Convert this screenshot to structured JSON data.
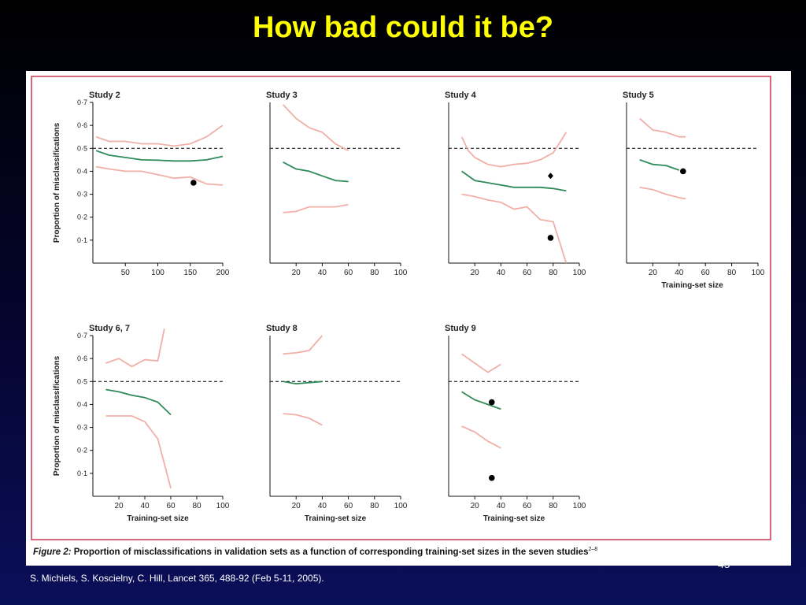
{
  "slide": {
    "title": "How bad could it be?",
    "slide_number": "45",
    "citation": "S. Michiels, S. Koscielny, C. Hill, Lancet 365, 488-92 (Feb 5-11, 2005)."
  },
  "figure": {
    "caption": "Figure 2: Proportion of misclassifications in validation sets as a function of corresponding training-set sizes in the seven studies",
    "caption_prefix": "Figure 2:",
    "caption_body": " Proportion of misclassifications in validation sets as a function of corresponding training-set sizes in the seven studies",
    "caption_superscript": "2–8",
    "border_color": "#cc3355",
    "colors": {
      "median": "#2e8b57",
      "bounds": "#f0b0a8",
      "reference": "#000000",
      "points": "#000000"
    }
  },
  "chart_data": [
    {
      "type": "line",
      "title": "Study 2",
      "xlabel": "",
      "ylabel": "Proportion of misclassifications",
      "xlim": [
        0,
        200
      ],
      "ylim": [
        0,
        0.7
      ],
      "xticks": [
        50,
        100,
        150,
        200
      ],
      "yticks": [
        0.1,
        0.2,
        0.3,
        0.4,
        0.5,
        0.6,
        0.7
      ],
      "xtick_labels": [
        "50",
        "100",
        "150",
        "200"
      ],
      "ytick_labels": [
        "0·1",
        "0·2",
        "0·3",
        "0·4",
        "0·5",
        "0·6",
        "0·7"
      ],
      "reference_line": 0.5,
      "series": [
        {
          "role": "median",
          "x": [
            5,
            25,
            50,
            75,
            100,
            125,
            150,
            175,
            200
          ],
          "y": [
            0.49,
            0.47,
            0.46,
            0.45,
            0.448,
            0.445,
            0.445,
            0.45,
            0.465
          ]
        },
        {
          "role": "upper",
          "x": [
            5,
            25,
            50,
            75,
            100,
            125,
            150,
            175,
            200
          ],
          "y": [
            0.55,
            0.53,
            0.53,
            0.52,
            0.52,
            0.51,
            0.52,
            0.55,
            0.6
          ]
        },
        {
          "role": "lower",
          "x": [
            5,
            25,
            50,
            75,
            100,
            125,
            150,
            175,
            200
          ],
          "y": [
            0.42,
            0.41,
            0.4,
            0.4,
            0.385,
            0.37,
            0.375,
            0.345,
            0.34
          ]
        }
      ],
      "points": [
        {
          "x": 155,
          "y": 0.35
        }
      ],
      "diamonds": []
    },
    {
      "type": "line",
      "title": "Study 3",
      "xlabel": "",
      "ylabel": "",
      "xlim": [
        0,
        100
      ],
      "ylim": [
        0,
        0.7
      ],
      "xticks": [
        20,
        40,
        60,
        80,
        100
      ],
      "yticks": [],
      "xtick_labels": [
        "20",
        "40",
        "60",
        "80",
        "100"
      ],
      "ytick_labels": [],
      "reference_line": 0.5,
      "series": [
        {
          "role": "median",
          "x": [
            10,
            20,
            30,
            40,
            50,
            60
          ],
          "y": [
            0.44,
            0.41,
            0.4,
            0.38,
            0.36,
            0.355
          ]
        },
        {
          "role": "upper",
          "x": [
            10,
            20,
            30,
            40,
            50,
            60
          ],
          "y": [
            0.69,
            0.63,
            0.59,
            0.57,
            0.52,
            0.49
          ]
        },
        {
          "role": "lower",
          "x": [
            10,
            20,
            30,
            40,
            50,
            60
          ],
          "y": [
            0.22,
            0.225,
            0.245,
            0.245,
            0.245,
            0.255
          ]
        }
      ],
      "points": [],
      "diamonds": []
    },
    {
      "type": "line",
      "title": "Study 4",
      "xlabel": "",
      "ylabel": "",
      "xlim": [
        0,
        100
      ],
      "ylim": [
        0,
        0.7
      ],
      "xticks": [
        20,
        40,
        60,
        80,
        100
      ],
      "yticks": [],
      "xtick_labels": [
        "20",
        "40",
        "60",
        "80",
        "100"
      ],
      "ytick_labels": [],
      "reference_line": 0.5,
      "series": [
        {
          "role": "median",
          "x": [
            10,
            20,
            30,
            40,
            50,
            60,
            70,
            80,
            90
          ],
          "y": [
            0.4,
            0.36,
            0.35,
            0.34,
            0.33,
            0.33,
            0.33,
            0.325,
            0.315
          ]
        },
        {
          "role": "upper",
          "x": [
            10,
            15,
            20,
            30,
            40,
            50,
            60,
            70,
            80,
            90
          ],
          "y": [
            0.55,
            0.49,
            0.46,
            0.43,
            0.42,
            0.43,
            0.435,
            0.45,
            0.48,
            0.57
          ]
        },
        {
          "role": "lower",
          "x": [
            10,
            20,
            30,
            40,
            50,
            60,
            70,
            80,
            90
          ],
          "y": [
            0.3,
            0.29,
            0.275,
            0.265,
            0.235,
            0.245,
            0.19,
            0.18,
            0.0
          ]
        }
      ],
      "points": [
        {
          "x": 78,
          "y": 0.11
        }
      ],
      "diamonds": [
        {
          "x": 78,
          "y": 0.38
        }
      ]
    },
    {
      "type": "line",
      "title": "Study 5",
      "xlabel": "Training-set size",
      "ylabel": "",
      "xlim": [
        0,
        100
      ],
      "ylim": [
        0,
        0.7
      ],
      "xticks": [
        20,
        40,
        60,
        80,
        100
      ],
      "yticks": [],
      "xtick_labels": [
        "20",
        "40",
        "60",
        "80",
        "100"
      ],
      "ytick_labels": [],
      "reference_line": 0.5,
      "series": [
        {
          "role": "median",
          "x": [
            10,
            20,
            30,
            40
          ],
          "y": [
            0.45,
            0.43,
            0.425,
            0.405
          ]
        },
        {
          "role": "upper",
          "x": [
            10,
            20,
            30,
            40,
            45
          ],
          "y": [
            0.63,
            0.58,
            0.57,
            0.55,
            0.55
          ]
        },
        {
          "role": "lower",
          "x": [
            10,
            20,
            30,
            40,
            45
          ],
          "y": [
            0.33,
            0.32,
            0.3,
            0.285,
            0.28
          ]
        }
      ],
      "points": [
        {
          "x": 43,
          "y": 0.4
        }
      ],
      "diamonds": []
    },
    {
      "type": "line",
      "title": "Study 6, 7",
      "xlabel": "Training-set size",
      "ylabel": "Proportion of misclassifications",
      "xlim": [
        0,
        100
      ],
      "ylim": [
        0,
        0.7
      ],
      "xticks": [
        20,
        40,
        60,
        80,
        100
      ],
      "yticks": [
        0.1,
        0.2,
        0.3,
        0.4,
        0.5,
        0.6,
        0.7
      ],
      "xtick_labels": [
        "20",
        "40",
        "60",
        "80",
        "100"
      ],
      "ytick_labels": [
        "0·1",
        "0·2",
        "0·3",
        "0·4",
        "0·5",
        "0·6",
        "0·7"
      ],
      "reference_line": 0.5,
      "series": [
        {
          "role": "median",
          "x": [
            10,
            20,
            30,
            40,
            50,
            60
          ],
          "y": [
            0.465,
            0.455,
            0.44,
            0.43,
            0.41,
            0.355
          ]
        },
        {
          "role": "upper",
          "x": [
            10,
            20,
            30,
            40,
            50,
            55
          ],
          "y": [
            0.58,
            0.6,
            0.565,
            0.595,
            0.59,
            0.73
          ]
        },
        {
          "role": "lower",
          "x": [
            10,
            20,
            30,
            40,
            50,
            60
          ],
          "y": [
            0.35,
            0.35,
            0.35,
            0.325,
            0.25,
            0.035
          ]
        }
      ],
      "points": [],
      "diamonds": []
    },
    {
      "type": "line",
      "title": "Study 8",
      "xlabel": "Training-set size",
      "ylabel": "",
      "xlim": [
        0,
        100
      ],
      "ylim": [
        0,
        0.7
      ],
      "xticks": [
        20,
        40,
        60,
        80,
        100
      ],
      "yticks": [],
      "xtick_labels": [
        "20",
        "40",
        "60",
        "80",
        "100"
      ],
      "ytick_labels": [],
      "reference_line": 0.5,
      "series": [
        {
          "role": "median",
          "x": [
            10,
            20,
            30,
            40
          ],
          "y": [
            0.5,
            0.49,
            0.495,
            0.5
          ]
        },
        {
          "role": "upper",
          "x": [
            10,
            20,
            30,
            40
          ],
          "y": [
            0.62,
            0.625,
            0.635,
            0.7
          ]
        },
        {
          "role": "lower",
          "x": [
            10,
            20,
            30,
            40
          ],
          "y": [
            0.36,
            0.355,
            0.34,
            0.31
          ]
        }
      ],
      "points": [],
      "diamonds": []
    },
    {
      "type": "line",
      "title": "Study 9",
      "xlabel": "Training-set size",
      "ylabel": "",
      "xlim": [
        0,
        100
      ],
      "ylim": [
        0,
        0.7
      ],
      "xticks": [
        20,
        40,
        60,
        80,
        100
      ],
      "yticks": [],
      "xtick_labels": [
        "20",
        "40",
        "60",
        "80",
        "100"
      ],
      "ytick_labels": [],
      "reference_line": 0.5,
      "series": [
        {
          "role": "median",
          "x": [
            10,
            20,
            30,
            40
          ],
          "y": [
            0.455,
            0.42,
            0.4,
            0.38
          ]
        },
        {
          "role": "upper",
          "x": [
            10,
            20,
            30,
            40
          ],
          "y": [
            0.62,
            0.58,
            0.54,
            0.575
          ]
        },
        {
          "role": "lower",
          "x": [
            10,
            20,
            30,
            40
          ],
          "y": [
            0.305,
            0.28,
            0.24,
            0.21
          ]
        }
      ],
      "points": [
        {
          "x": 33,
          "y": 0.41
        },
        {
          "x": 33,
          "y": 0.08
        }
      ],
      "diamonds": []
    }
  ]
}
